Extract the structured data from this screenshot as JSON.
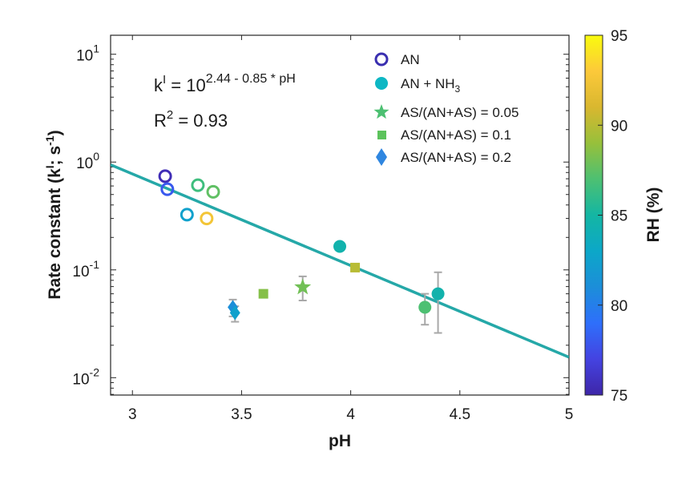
{
  "chart_data": {
    "type": "scatter",
    "x_axis": {
      "label": "pH",
      "range": [
        2.9,
        5.0
      ],
      "ticks": [
        3,
        3.5,
        4,
        4.5,
        5
      ],
      "tick_labels": [
        "3",
        "3.5",
        "4",
        "4.5",
        "5"
      ]
    },
    "y_axis": {
      "label_main": "Rate constant (k",
      "label_sup1": "I",
      "label_mid": "; s",
      "label_sup2": "-1",
      "label_end": ")",
      "scale": "log",
      "range": [
        0.0069,
        15
      ],
      "ticks": [
        0.01,
        0.1,
        1,
        10
      ],
      "tick_bases": [
        "10",
        "10",
        "10",
        "10"
      ],
      "tick_exps": [
        "-2",
        "-1",
        "0",
        "1"
      ]
    },
    "colorbar": {
      "label": "RH (%)",
      "range": [
        75,
        95
      ],
      "ticks": [
        75,
        80,
        85,
        90,
        95
      ],
      "tick_labels": [
        "75",
        "80",
        "85",
        "90",
        "95"
      ]
    },
    "fit": {
      "intercept": 2.44,
      "slope": -0.85,
      "color": "#25a8a8",
      "equation_prefix": "k",
      "equation_sup": "I",
      "equation_eq": " = 10",
      "equation_exp": "2.44 - 0.85 * pH",
      "r2_prefix": "R",
      "r2_sup": "2",
      "r2_value": " = 0.93"
    },
    "series": [
      {
        "name": "AN",
        "marker": "open-circle",
        "points": [
          {
            "x": 3.15,
            "y": 0.74,
            "rh": 75.5
          },
          {
            "x": 3.16,
            "y": 0.56,
            "rh": 78
          },
          {
            "x": 3.25,
            "y": 0.325,
            "rh": 82.5
          },
          {
            "x": 3.3,
            "y": 0.61,
            "rh": 86.5
          },
          {
            "x": 3.34,
            "y": 0.3,
            "rh": 92.5
          },
          {
            "x": 3.37,
            "y": 0.53,
            "rh": 87.5
          }
        ]
      },
      {
        "name": "AN + NH",
        "name_sub": "3",
        "marker": "filled-circle",
        "points": [
          {
            "x": 3.95,
            "y": 0.165,
            "rh": 84.5
          },
          {
            "x": 4.34,
            "y": 0.045,
            "rh": 87,
            "err": [
              0.031,
              0.06
            ]
          },
          {
            "x": 4.4,
            "y": 0.06,
            "rh": 84.5,
            "err": [
              0.026,
              0.095
            ]
          }
        ]
      },
      {
        "name": "AS/(AN+AS) = 0.05",
        "marker": "star",
        "points": [
          {
            "x": 3.78,
            "y": 0.069,
            "rh": 88,
            "err": [
              0.052,
              0.087
            ]
          }
        ]
      },
      {
        "name": "AS/(AN+AS) = 0.1",
        "marker": "square",
        "points": [
          {
            "x": 3.6,
            "y": 0.06,
            "rh": 88.5,
            "err": [
              0.056,
              0.064
            ]
          },
          {
            "x": 4.02,
            "y": 0.105,
            "rh": 90,
            "err": [
              0.098,
              0.112
            ]
          }
        ]
      },
      {
        "name": "AS/(AN+AS) = 0.2",
        "marker": "diamond",
        "points": [
          {
            "x": 3.46,
            "y": 0.045,
            "rh": 81,
            "err": [
              0.037,
              0.053
            ]
          },
          {
            "x": 3.47,
            "y": 0.04,
            "rh": 82.5,
            "err": [
              0.033,
              0.046
            ]
          }
        ]
      }
    ]
  }
}
